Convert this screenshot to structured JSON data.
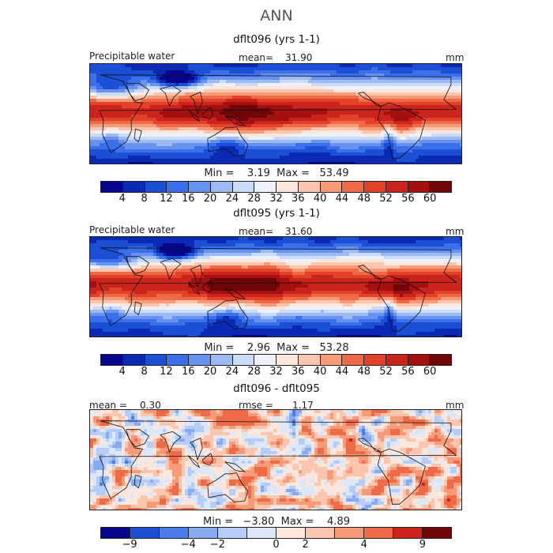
{
  "title": "ANN",
  "colors": {
    "full": [
      "#08068c",
      "#0b2ab4",
      "#1a4fd6",
      "#3b70ea",
      "#6792f0",
      "#9cbbf4",
      "#cadbf8",
      "#ecf1fb",
      "#fde7dc",
      "#fbc6ad",
      "#f69a78",
      "#ef6a47",
      "#e4412a",
      "#cb241d",
      "#a3100f",
      "#6f0608"
    ],
    "diff": [
      "#08068c",
      "#1a4fd6",
      "#4c7cea",
      "#87aaf1",
      "#b6cdf7",
      "#dde7fa",
      "#fde7dc",
      "#fbc6ad",
      "#f69a78",
      "#ef6a47",
      "#cb241d",
      "#6f0608"
    ]
  },
  "panels": [
    {
      "title": "dflt096 (yrs 1-1)",
      "left_label": "Precipitable water",
      "center_label": "mean=",
      "center_value": "31.90",
      "right_label": "mm",
      "minmax": "Min =    3.19  Max =   53.49",
      "field": "pw"
    },
    {
      "title": "dflt095 (yrs 1-1)",
      "left_label": "Precipitable water",
      "center_label": "mean=",
      "center_value": "31.60",
      "right_label": "mm",
      "minmax": "Min =    2.96  Max =   53.28",
      "field": "pw"
    },
    {
      "title": "dflt096 - dflt095",
      "left_label": "mean =",
      "left_value": "0.30",
      "center_label": "rmse =",
      "center_value": "1.17",
      "right_label": "mm",
      "minmax": "Min =   −3.80  Max =    4.89",
      "field": "diff"
    }
  ],
  "colorbar_full_ticks": [
    "4",
    "8",
    "12",
    "16",
    "20",
    "24",
    "28",
    "32",
    "36",
    "40",
    "44",
    "48",
    "52",
    "56",
    "60"
  ],
  "colorbar_diff_ticks": [
    "−9",
    "−4",
    "−2",
    "0",
    "2",
    "4",
    "9"
  ],
  "chart_data": [
    {
      "type": "heatmap",
      "title": "dflt096 (yrs 1-1)",
      "variable": "Precipitable water",
      "units": "mm",
      "mean": 31.9,
      "min": 3.19,
      "max": 53.49,
      "contour_levels": [
        4,
        8,
        12,
        16,
        20,
        24,
        28,
        32,
        36,
        40,
        44,
        48,
        52,
        56,
        60
      ]
    },
    {
      "type": "heatmap",
      "title": "dflt095 (yrs 1-1)",
      "variable": "Precipitable water",
      "units": "mm",
      "mean": 31.6,
      "min": 2.96,
      "max": 53.28,
      "contour_levels": [
        4,
        8,
        12,
        16,
        20,
        24,
        28,
        32,
        36,
        40,
        44,
        48,
        52,
        56,
        60
      ]
    },
    {
      "type": "heatmap",
      "title": "dflt096 - dflt095",
      "units": "mm",
      "mean": 0.3,
      "rmse": 1.17,
      "min": -3.8,
      "max": 4.89,
      "contour_levels": [
        -9,
        -4,
        -2,
        0,
        2,
        4,
        9
      ]
    }
  ]
}
